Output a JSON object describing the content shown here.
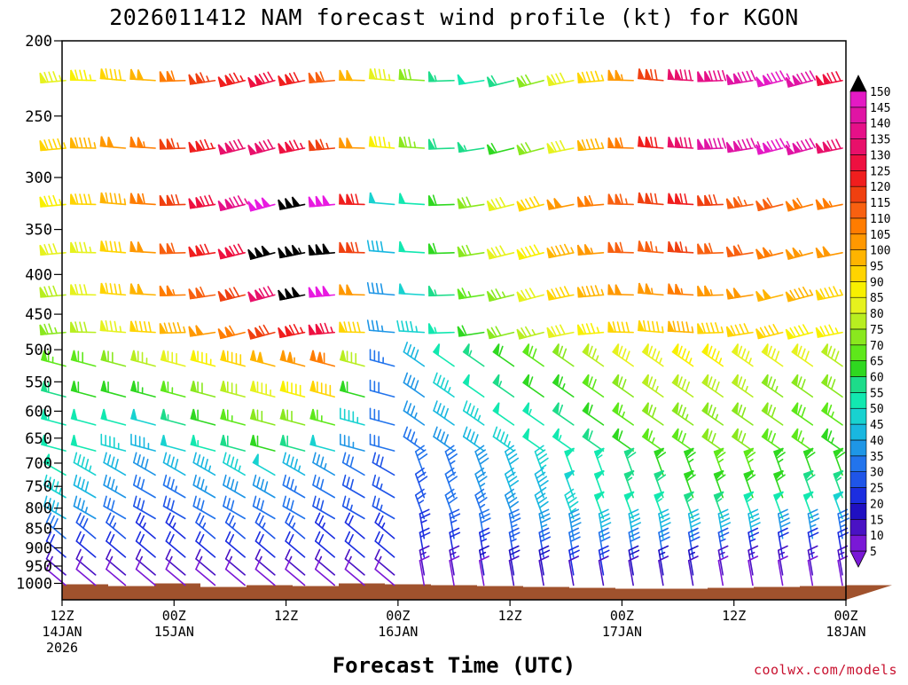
{
  "chart_data": {
    "type": "wind-barb-profile",
    "title": "2026011412 NAM forecast wind profile (kt) for KGON",
    "xlabel": "Forecast Time (UTC)",
    "credit": "coolwx.com/models",
    "y_axis": {
      "label": "",
      "scale": "log-pressure",
      "ylim": [
        1050,
        200
      ],
      "ticks": [
        200,
        250,
        300,
        350,
        400,
        450,
        500,
        550,
        600,
        650,
        700,
        750,
        800,
        850,
        900,
        950,
        1000
      ]
    },
    "x_axis": {
      "ticks": [
        {
          "hour": 0,
          "line1": "12Z",
          "line2": "14JAN",
          "line3": "2026"
        },
        {
          "hour": 12,
          "line1": "00Z",
          "line2": "15JAN",
          "line3": ""
        },
        {
          "hour": 24,
          "line1": "12Z",
          "line2": "",
          "line3": ""
        },
        {
          "hour": 36,
          "line1": "00Z",
          "line2": "16JAN",
          "line3": ""
        },
        {
          "hour": 48,
          "line1": "12Z",
          "line2": "",
          "line3": ""
        },
        {
          "hour": 60,
          "line1": "00Z",
          "line2": "17JAN",
          "line3": ""
        },
        {
          "hour": 72,
          "line1": "12Z",
          "line2": "",
          "line3": ""
        },
        {
          "hour": 84,
          "line1": "00Z",
          "line2": "18JAN",
          "line3": ""
        }
      ],
      "xlim": [
        0,
        84
      ]
    },
    "colorbar": {
      "levels": [
        5,
        10,
        15,
        20,
        25,
        30,
        35,
        40,
        45,
        50,
        55,
        60,
        65,
        70,
        75,
        80,
        85,
        90,
        95,
        100,
        105,
        110,
        115,
        120,
        125,
        130,
        135,
        140,
        145,
        150
      ],
      "colors": [
        "#7a18d6",
        "#4a12c4",
        "#2010c2",
        "#1c2ee0",
        "#1f55e8",
        "#2274ec",
        "#1e96e6",
        "#19b7e0",
        "#18d2d0",
        "#12e8b0",
        "#1ddc8a",
        "#2fd820",
        "#5ee81a",
        "#8ae81e",
        "#b8ee20",
        "#e6f21e",
        "#f8f000",
        "#ffd400",
        "#ffb400",
        "#ff9800",
        "#ff7c00",
        "#f86010",
        "#f04010",
        "#f01e1e",
        "#ee1040",
        "#e8106a",
        "#e61088",
        "#e014a4",
        "#e41ac4",
        "#e81ae0"
      ],
      "extend_colors": [
        "#7a18d6",
        "#000000"
      ]
    },
    "pressure_levels": [
      225,
      275,
      325,
      375,
      425,
      475,
      525,
      575,
      625,
      675,
      725,
      775,
      825,
      875,
      925,
      975,
      1000
    ],
    "terrain_pressure_hpa": 1000,
    "series": [
      {
        "level": 225,
        "speed": [
          84,
          86,
          90,
          98,
          108,
          116,
          124,
          128,
          122,
          112,
          98,
          84,
          72,
          55,
          50,
          58,
          70,
          80,
          94,
          104,
          118,
          130,
          138,
          142,
          145,
          140,
          128
        ]
      },
      {
        "level": 275,
        "speed": [
          94,
          96,
          100,
          106,
          116,
          124,
          130,
          132,
          126,
          116,
          100,
          86,
          74,
          58,
          56,
          62,
          72,
          82,
          96,
          108,
          120,
          132,
          140,
          144,
          146,
          142,
          130
        ]
      },
      {
        "level": 325,
        "speed": [
          86,
          90,
          96,
          108,
          118,
          128,
          136,
          150,
          152,
          150,
          120,
          48,
          52,
          60,
          70,
          80,
          90,
          100,
          108,
          114,
          118,
          120,
          118,
          114,
          110,
          108,
          106
        ]
      },
      {
        "level": 375,
        "speed": [
          80,
          84,
          92,
          102,
          112,
          120,
          128,
          152,
          154,
          152,
          118,
          42,
          52,
          62,
          72,
          80,
          88,
          96,
          104,
          110,
          114,
          116,
          112,
          110,
          106,
          104,
          102
        ]
      },
      {
        "level": 425,
        "speed": [
          78,
          82,
          90,
          98,
          106,
          112,
          118,
          132,
          152,
          150,
          100,
          38,
          48,
          56,
          66,
          74,
          82,
          90,
          96,
          100,
          104,
          106,
          104,
          100,
          98,
          96,
          94
        ]
      },
      {
        "level": 475,
        "speed": [
          74,
          78,
          84,
          90,
          96,
          102,
          108,
          118,
          124,
          126,
          92,
          36,
          46,
          54,
          62,
          70,
          76,
          82,
          86,
          90,
          94,
          96,
          94,
          92,
          90,
          88,
          86
        ]
      },
      {
        "level": 525,
        "speed": [
          66,
          68,
          72,
          76,
          80,
          86,
          92,
          98,
          104,
          108,
          78,
          34,
          42,
          50,
          56,
          62,
          68,
          72,
          76,
          80,
          84,
          86,
          86,
          84,
          82,
          80,
          78
        ]
      },
      {
        "level": 575,
        "speed": [
          58,
          60,
          62,
          64,
          66,
          72,
          78,
          84,
          88,
          90,
          60,
          30,
          38,
          46,
          52,
          56,
          60,
          64,
          68,
          72,
          76,
          78,
          78,
          76,
          74,
          72,
          70
        ]
      },
      {
        "level": 625,
        "speed": [
          54,
          52,
          50,
          48,
          56,
          62,
          66,
          70,
          72,
          66,
          46,
          32,
          36,
          42,
          46,
          50,
          54,
          58,
          62,
          66,
          70,
          74,
          74,
          72,
          70,
          68,
          66
        ]
      },
      {
        "level": 675,
        "speed": [
          52,
          50,
          46,
          44,
          48,
          54,
          58,
          62,
          58,
          48,
          36,
          30,
          34,
          38,
          42,
          46,
          50,
          54,
          58,
          62,
          66,
          68,
          70,
          70,
          68,
          66,
          64
        ]
      },
      {
        "level": 725,
        "speed": [
          50,
          46,
          42,
          38,
          40,
          44,
          46,
          48,
          44,
          36,
          30,
          28,
          30,
          34,
          38,
          42,
          46,
          50,
          54,
          58,
          62,
          64,
          66,
          66,
          64,
          62,
          60
        ]
      },
      {
        "level": 775,
        "speed": [
          46,
          42,
          36,
          32,
          34,
          36,
          38,
          38,
          34,
          30,
          28,
          26,
          28,
          32,
          36,
          40,
          44,
          48,
          52,
          56,
          58,
          60,
          62,
          62,
          60,
          58,
          56
        ]
      },
      {
        "level": 825,
        "speed": [
          40,
          36,
          32,
          28,
          28,
          30,
          32,
          32,
          30,
          28,
          26,
          26,
          26,
          30,
          34,
          38,
          42,
          46,
          50,
          52,
          54,
          56,
          56,
          54,
          52,
          50,
          48
        ]
      },
      {
        "level": 875,
        "speed": [
          30,
          28,
          26,
          24,
          24,
          26,
          26,
          26,
          26,
          24,
          22,
          24,
          24,
          26,
          30,
          34,
          36,
          38,
          40,
          42,
          44,
          44,
          42,
          40,
          38,
          36,
          34
        ]
      },
      {
        "level": 925,
        "speed": [
          22,
          22,
          20,
          20,
          20,
          20,
          20,
          20,
          20,
          20,
          20,
          20,
          20,
          22,
          24,
          26,
          28,
          30,
          30,
          30,
          30,
          28,
          26,
          24,
          22,
          22,
          22
        ]
      },
      {
        "level": 975,
        "speed": [
          14,
          14,
          14,
          14,
          14,
          14,
          14,
          14,
          14,
          14,
          14,
          14,
          14,
          14,
          16,
          18,
          18,
          20,
          20,
          18,
          16,
          16,
          14,
          14,
          14,
          14,
          14
        ]
      },
      {
        "level": 1000,
        "speed": [
          8,
          8,
          8,
          8,
          8,
          8,
          8,
          8,
          8,
          8,
          8,
          8,
          8,
          8,
          8,
          10,
          10,
          10,
          10,
          10,
          10,
          10,
          8,
          8,
          8,
          8,
          8
        ]
      }
    ],
    "direction_from_deg": "westerly to northwesterly aloft, veering to northerly near the surface after 00Z 16JAN"
  }
}
